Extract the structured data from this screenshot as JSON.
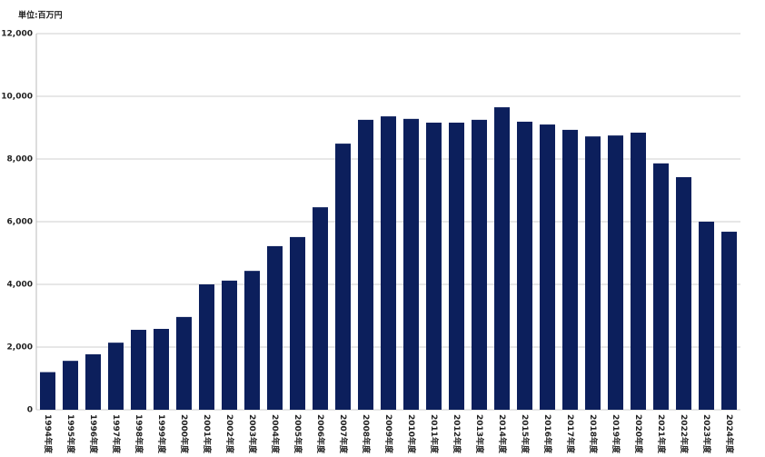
{
  "chart_data": {
    "type": "bar",
    "unit_label": "単位:百万円",
    "categories": [
      "1994年度",
      "1995年度",
      "1996年度",
      "1997年度",
      "1998年度",
      "1999年度",
      "2000年度",
      "2001年度",
      "2002年度",
      "2003年度",
      "2004年度",
      "2005年度",
      "2006年度",
      "2007年度",
      "2008年度",
      "2009年度",
      "2010年度",
      "2011年度",
      "2012年度",
      "2013年度",
      "2014年度",
      "2015年度",
      "2016年度",
      "2017年度",
      "2018年度",
      "2019年度",
      "2020年度",
      "2021年度",
      "2022年度",
      "2023年度",
      "2024年度"
    ],
    "values": [
      1200,
      1560,
      1770,
      2140,
      2550,
      2580,
      2960,
      4000,
      4120,
      4430,
      5220,
      5510,
      6460,
      8490,
      9250,
      9360,
      9280,
      9160,
      9160,
      9250,
      9650,
      9190,
      9100,
      8930,
      8720,
      8750,
      8840,
      7860,
      7420,
      6000,
      5680
    ],
    "color": "#0c1f5c",
    "ylim": [
      0,
      12000
    ],
    "yticks": [
      0,
      {
        "value": 2000,
        "label": "2,000"
      },
      {
        "value": 4000,
        "label": "4,000"
      },
      {
        "value": 6000,
        "label": "6,000"
      },
      {
        "value": 8000,
        "label": "8,000"
      },
      {
        "value": 10000,
        "label": "10,000"
      },
      {
        "value": 12000,
        "label": "12,000"
      }
    ],
    "grid": true
  }
}
